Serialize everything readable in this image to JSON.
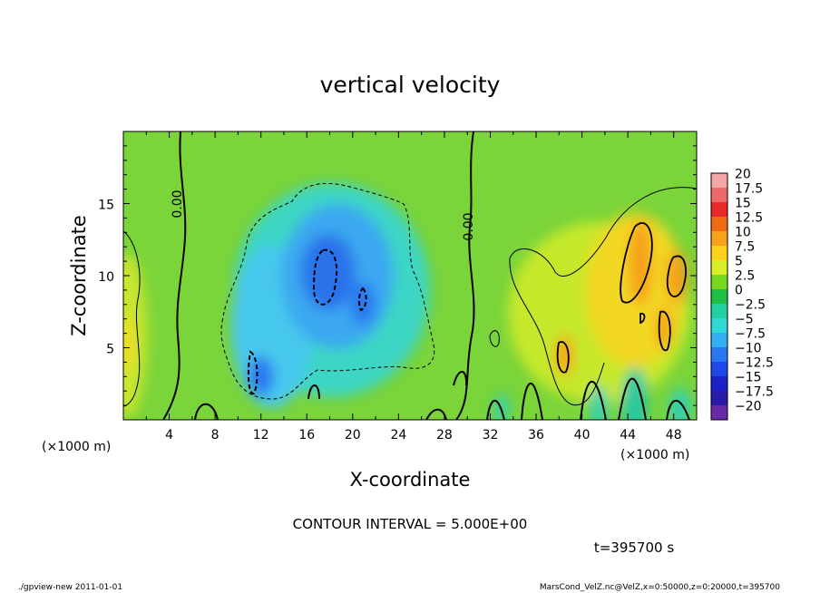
{
  "chart_data": {
    "type": "heatmap",
    "title": "vertical velocity",
    "xlabel": "X-coordinate",
    "ylabel": "Z-coordinate",
    "x_unit": "(×1000 m)",
    "y_unit": "(×1000 m)",
    "xlim": [
      0,
      50
    ],
    "ylim": [
      0,
      20
    ],
    "x_ticks": [
      4,
      8,
      12,
      16,
      20,
      24,
      28,
      32,
      36,
      40,
      44,
      48
    ],
    "y_ticks": [
      5,
      10,
      15
    ],
    "colorbar": {
      "levels": [
        "20",
        "17.5",
        "15",
        "12.5",
        "10",
        "7.5",
        "5",
        "2.5",
        "0",
        "−2.5",
        "−5",
        "−7.5",
        "−10",
        "−12.5",
        "−15",
        "−17.5",
        "−20"
      ],
      "colors": [
        "#f4a6a6",
        "#ef6868",
        "#e82a2a",
        "#f06a12",
        "#f7a21a",
        "#fcd21e",
        "#d8ee28",
        "#78d820",
        "#20c048",
        "#20d0a0",
        "#30d8d8",
        "#30b0f0",
        "#2a78f0",
        "#1f48e8",
        "#1a22c8",
        "#2a1aa8",
        "#6a2aa8"
      ]
    },
    "zero_contour_labels": [
      "0.00",
      "0.00"
    ],
    "contour_interval_text": "CONTOUR INTERVAL = 5.000E+00",
    "time_text": "t=395700 s",
    "grid": false,
    "legend": "colorbar-right"
  },
  "footer": {
    "left": "./gpview-new   2011-01-01",
    "right": "MarsCond_VelZ.nc@VelZ,x=0:50000,z=0:20000,t=395700"
  }
}
